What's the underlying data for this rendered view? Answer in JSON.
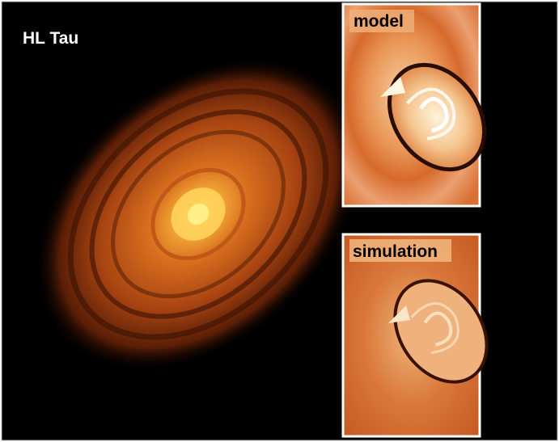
{
  "main": {
    "label": "HL Tau"
  },
  "panels": [
    {
      "label": "model"
    },
    {
      "label": "simulation"
    }
  ]
}
